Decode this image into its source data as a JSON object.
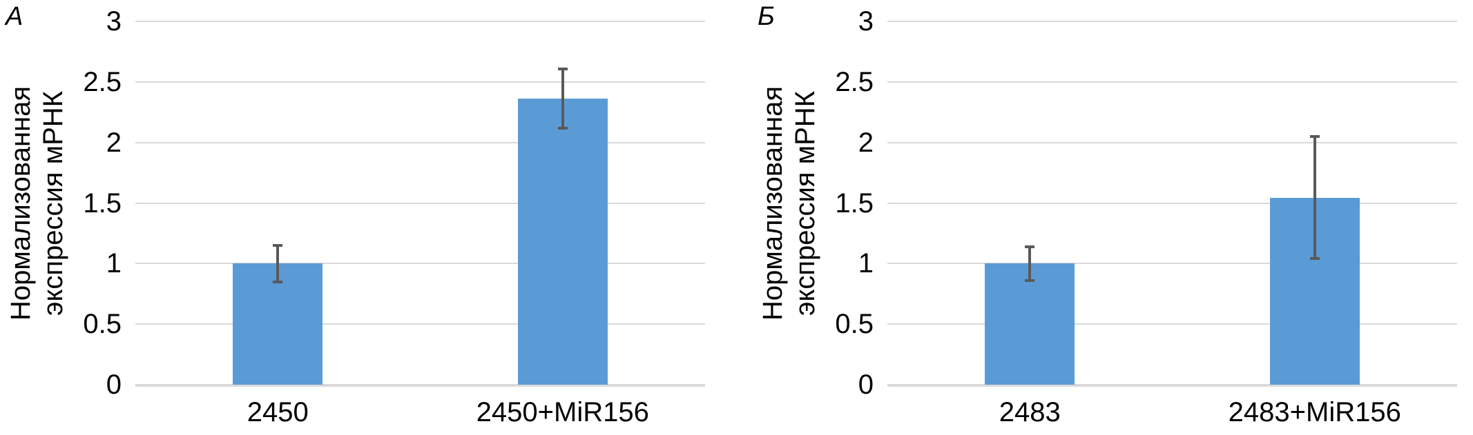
{
  "figure": {
    "background": "#FFFFFF"
  },
  "chart_data": [
    {
      "type": "bar",
      "panel_label": "А",
      "title": "",
      "xlabel": "",
      "ylabel": "Нормализованная экспрессия мРНК",
      "ylabel_lines": [
        "Нормализованная",
        "экспрессия мРНК"
      ],
      "categories": [
        "2450",
        "2450+MiR156"
      ],
      "values": [
        1.0,
        2.36
      ],
      "error_bars": [
        {
          "low": 0.85,
          "high": 1.15
        },
        {
          "low": 2.12,
          "high": 2.61
        }
      ],
      "ylim": [
        0,
        3
      ],
      "yticks": [
        0,
        0.5,
        1,
        1.5,
        2,
        2.5,
        3
      ],
      "ytick_labels": [
        "0",
        "0.5",
        "1",
        "1.5",
        "2",
        "2.5",
        "3"
      ],
      "grid": true,
      "legend_position": "none",
      "bar_color": "#5B9BD5",
      "error_bar_color": "#595959",
      "gridline_color": "#D9D9D9"
    },
    {
      "type": "bar",
      "panel_label": "Б",
      "title": "",
      "xlabel": "",
      "ylabel": "Нормализованная экспрессия мРНК",
      "ylabel_lines": [
        "Нормализованная",
        "экспрессия мРНК"
      ],
      "categories": [
        "2483",
        "2483+MiR156"
      ],
      "values": [
        1.0,
        1.54
      ],
      "error_bars": [
        {
          "low": 0.86,
          "high": 1.14
        },
        {
          "low": 1.04,
          "high": 2.05
        }
      ],
      "ylim": [
        0,
        3
      ],
      "yticks": [
        0,
        0.5,
        1,
        1.5,
        2,
        2.5,
        3
      ],
      "ytick_labels": [
        "0",
        "0.5",
        "1",
        "1.5",
        "2",
        "2.5",
        "3"
      ],
      "grid": true,
      "legend_position": "none",
      "bar_color": "#5B9BD5",
      "error_bar_color": "#595959",
      "gridline_color": "#D9D9D9"
    }
  ]
}
